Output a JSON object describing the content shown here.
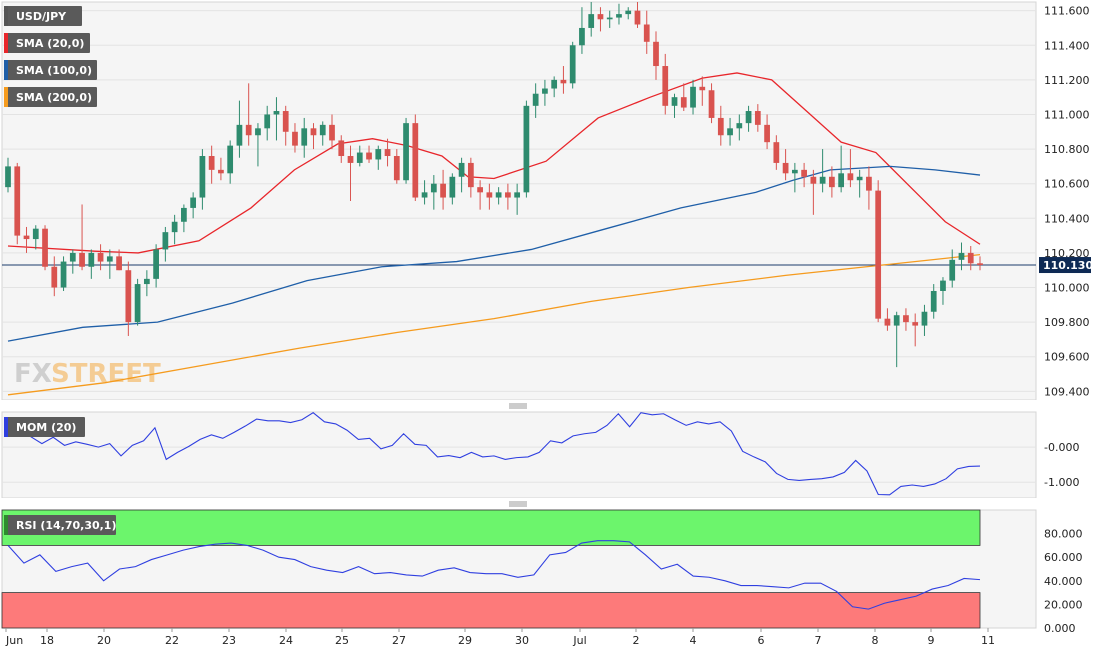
{
  "chart_data": [
    {
      "type": "candlestick",
      "symbol": "USD/JPY",
      "indicators": [
        {
          "name": "SMA (20,0)",
          "color": "#e8262b"
        },
        {
          "name": "SMA (100,0)",
          "color": "#1f5fa8"
        },
        {
          "name": "SMA (200,0)",
          "color": "#f59b1e"
        }
      ],
      "symbol_color": "#555555",
      "current_price": "110.130",
      "ylim": [
        109.35,
        111.65
      ],
      "y_ticks": [
        "111.600",
        "111.400",
        "111.200",
        "111.000",
        "110.800",
        "110.600",
        "110.400",
        "110.200",
        "110.000",
        "109.800",
        "109.600",
        "109.400"
      ],
      "x_ticks": [
        "Jun",
        "18",
        "20",
        "22",
        "23",
        "24",
        "25",
        "27",
        "29",
        "30",
        "Jul",
        "2",
        "4",
        "6",
        "7",
        "8",
        "9",
        "11"
      ],
      "up_color": "#2e8b6e",
      "down_color": "#d9534f",
      "candles": [
        [
          110.58,
          110.75,
          110.55,
          110.7
        ],
        [
          110.7,
          110.72,
          110.25,
          110.3
        ],
        [
          110.3,
          110.35,
          110.2,
          110.28
        ],
        [
          110.28,
          110.36,
          110.22,
          110.34
        ],
        [
          110.34,
          110.36,
          110.1,
          110.12
        ],
        [
          110.12,
          110.18,
          109.95,
          110.0
        ],
        [
          110.0,
          110.18,
          109.98,
          110.15
        ],
        [
          110.15,
          110.22,
          110.08,
          110.2
        ],
        [
          110.2,
          110.48,
          110.1,
          110.12
        ],
        [
          110.12,
          110.22,
          110.05,
          110.2
        ],
        [
          110.2,
          110.25,
          110.1,
          110.15
        ],
        [
          110.15,
          110.22,
          110.05,
          110.18
        ],
        [
          110.18,
          110.22,
          110.1,
          110.1
        ],
        [
          110.1,
          110.15,
          109.72,
          109.8
        ],
        [
          109.8,
          110.05,
          109.78,
          110.02
        ],
        [
          110.02,
          110.1,
          109.95,
          110.05
        ],
        [
          110.05,
          110.25,
          110.0,
          110.22
        ],
        [
          110.22,
          110.35,
          110.15,
          110.32
        ],
        [
          110.32,
          110.42,
          110.25,
          110.38
        ],
        [
          110.38,
          110.48,
          110.32,
          110.46
        ],
        [
          110.46,
          110.55,
          110.4,
          110.52
        ],
        [
          110.52,
          110.8,
          110.45,
          110.76
        ],
        [
          110.76,
          110.82,
          110.6,
          110.68
        ],
        [
          110.68,
          110.75,
          110.62,
          110.66
        ],
        [
          110.66,
          110.85,
          110.6,
          110.82
        ],
        [
          110.82,
          111.08,
          110.75,
          110.94
        ],
        [
          110.94,
          111.18,
          110.82,
          110.88
        ],
        [
          110.88,
          110.95,
          110.7,
          110.92
        ],
        [
          110.92,
          111.05,
          110.85,
          111.0
        ],
        [
          111.0,
          111.1,
          110.85,
          111.02
        ],
        [
          111.02,
          111.05,
          110.82,
          110.9
        ],
        [
          110.9,
          110.95,
          110.78,
          110.82
        ],
        [
          110.82,
          110.98,
          110.75,
          110.92
        ],
        [
          110.92,
          110.95,
          110.8,
          110.88
        ],
        [
          110.88,
          110.96,
          110.82,
          110.94
        ],
        [
          110.94,
          111.0,
          110.8,
          110.85
        ],
        [
          110.85,
          110.88,
          110.72,
          110.76
        ],
        [
          110.76,
          110.82,
          110.5,
          110.72
        ],
        [
          110.72,
          110.82,
          110.7,
          110.78
        ],
        [
          110.78,
          110.82,
          110.72,
          110.74
        ],
        [
          110.74,
          110.82,
          110.68,
          110.8
        ],
        [
          110.8,
          110.86,
          110.7,
          110.76
        ],
        [
          110.76,
          110.8,
          110.6,
          110.62
        ],
        [
          110.62,
          110.98,
          110.6,
          110.95
        ],
        [
          110.95,
          111.0,
          110.5,
          110.52
        ],
        [
          110.52,
          110.62,
          110.48,
          110.55
        ],
        [
          110.55,
          110.65,
          110.45,
          110.6
        ],
        [
          110.6,
          110.68,
          110.45,
          110.52
        ],
        [
          110.52,
          110.66,
          110.48,
          110.64
        ],
        [
          110.64,
          110.75,
          110.55,
          110.72
        ],
        [
          110.72,
          110.75,
          110.52,
          110.58
        ],
        [
          110.58,
          110.62,
          110.45,
          110.55
        ],
        [
          110.55,
          110.6,
          110.45,
          110.52
        ],
        [
          110.52,
          110.58,
          110.48,
          110.55
        ],
        [
          110.55,
          110.6,
          110.45,
          110.52
        ],
        [
          110.52,
          110.6,
          110.42,
          110.55
        ],
        [
          110.55,
          111.08,
          110.52,
          111.05
        ],
        [
          111.05,
          111.18,
          110.98,
          111.12
        ],
        [
          111.12,
          111.2,
          111.05,
          111.15
        ],
        [
          111.15,
          111.22,
          111.1,
          111.2
        ],
        [
          111.2,
          111.28,
          111.12,
          111.18
        ],
        [
          111.18,
          111.42,
          111.15,
          111.4
        ],
        [
          111.4,
          111.62,
          111.35,
          111.5
        ],
        [
          111.5,
          111.65,
          111.45,
          111.58
        ],
        [
          111.58,
          111.62,
          111.48,
          111.55
        ],
        [
          111.55,
          111.6,
          111.5,
          111.56
        ],
        [
          111.56,
          111.64,
          111.52,
          111.58
        ],
        [
          111.58,
          111.62,
          111.55,
          111.6
        ],
        [
          111.6,
          111.65,
          111.5,
          111.52
        ],
        [
          111.52,
          111.6,
          111.35,
          111.42
        ],
        [
          111.42,
          111.48,
          111.2,
          111.28
        ],
        [
          111.28,
          111.35,
          111.0,
          111.05
        ],
        [
          111.05,
          111.12,
          110.98,
          111.1
        ],
        [
          111.1,
          111.18,
          111.02,
          111.04
        ],
        [
          111.04,
          111.2,
          111.0,
          111.16
        ],
        [
          111.16,
          111.22,
          111.05,
          111.14
        ],
        [
          111.14,
          111.18,
          110.95,
          110.98
        ],
        [
          110.98,
          111.05,
          110.82,
          110.88
        ],
        [
          110.88,
          110.98,
          110.82,
          110.92
        ],
        [
          110.92,
          111.0,
          110.85,
          110.95
        ],
        [
          110.95,
          111.05,
          110.9,
          111.02
        ],
        [
          111.02,
          111.06,
          110.9,
          110.94
        ],
        [
          110.94,
          111.0,
          110.8,
          110.84
        ],
        [
          110.84,
          110.88,
          110.68,
          110.72
        ],
        [
          110.72,
          110.8,
          110.62,
          110.66
        ],
        [
          110.66,
          110.72,
          110.55,
          110.68
        ],
        [
          110.68,
          110.72,
          110.58,
          110.64
        ],
        [
          110.64,
          110.68,
          110.42,
          110.6
        ],
        [
          110.6,
          110.8,
          110.55,
          110.64
        ],
        [
          110.64,
          110.7,
          110.52,
          110.58
        ],
        [
          110.58,
          110.82,
          110.55,
          110.66
        ],
        [
          110.66,
          110.8,
          110.58,
          110.62
        ],
        [
          110.62,
          110.68,
          110.52,
          110.64
        ],
        [
          110.64,
          110.7,
          110.45,
          110.56
        ],
        [
          110.56,
          110.62,
          109.8,
          109.82
        ],
        [
          109.82,
          109.88,
          109.75,
          109.78
        ],
        [
          109.78,
          109.86,
          109.54,
          109.84
        ],
        [
          109.84,
          109.88,
          109.75,
          109.8
        ],
        [
          109.8,
          109.85,
          109.66,
          109.78
        ],
        [
          109.78,
          109.9,
          109.72,
          109.86
        ],
        [
          109.86,
          110.02,
          109.82,
          109.98
        ],
        [
          109.98,
          110.06,
          109.9,
          110.04
        ],
        [
          110.04,
          110.22,
          110.0,
          110.16
        ],
        [
          110.16,
          110.26,
          110.1,
          110.2
        ],
        [
          110.2,
          110.24,
          110.1,
          110.14
        ],
        [
          110.14,
          110.18,
          110.1,
          110.13
        ]
      ],
      "series": [
        {
          "name": "SMA (20,0)",
          "values": [
            [
              0,
              110.24
            ],
            [
              10,
              110.21
            ],
            [
              15,
              110.2
            ],
            [
              22,
              110.27
            ],
            [
              28,
              110.46
            ],
            [
              33,
              110.68
            ],
            [
              38,
              110.83
            ],
            [
              42,
              110.86
            ],
            [
              46,
              110.82
            ],
            [
              50,
              110.76
            ],
            [
              53,
              110.64
            ],
            [
              56,
              110.63
            ],
            [
              62,
              110.73
            ],
            [
              68,
              110.98
            ],
            [
              74,
              111.1
            ],
            [
              80,
              111.21
            ],
            [
              84,
              111.24
            ],
            [
              88,
              111.2
            ],
            [
              92,
              111.02
            ],
            [
              96,
              110.84
            ],
            [
              100,
              110.78
            ],
            [
              104,
              110.58
            ],
            [
              108,
              110.38
            ],
            [
              112,
              110.25
            ]
          ]
        },
        {
          "name": "SMA (100,0)",
          "values": [
            [
              0,
              109.69
            ],
            [
              10,
              109.77
            ],
            [
              20,
              109.8
            ],
            [
              30,
              109.91
            ],
            [
              40,
              110.04
            ],
            [
              50,
              110.12
            ],
            [
              60,
              110.15
            ],
            [
              70,
              110.22
            ],
            [
              80,
              110.34
            ],
            [
              90,
              110.46
            ],
            [
              100,
              110.55
            ],
            [
              105,
              110.62
            ],
            [
              110,
              110.68
            ],
            [
              118,
              110.7
            ],
            [
              124,
              110.68
            ],
            [
              130,
              110.65
            ]
          ]
        },
        {
          "name": "SMA (200,0)",
          "values": [
            [
              0,
              109.38
            ],
            [
              20,
              109.45
            ],
            [
              40,
              109.55
            ],
            [
              60,
              109.65
            ],
            [
              80,
              109.74
            ],
            [
              100,
              109.82
            ],
            [
              120,
              109.92
            ],
            [
              140,
              110.0
            ],
            [
              160,
              110.07
            ],
            [
              180,
              110.13
            ],
            [
              200,
              110.19
            ]
          ]
        }
      ]
    },
    {
      "type": "line",
      "indicator": "MOM (20)",
      "color": "#2f3fe0",
      "ylim": [
        -1.45,
        1.0
      ],
      "y_ticks": [
        "-0.000",
        "-1.000"
      ],
      "values": [
        0.82,
        0.6,
        0.3,
        0.1,
        0.28,
        0.05,
        0.15,
        0.08,
        0.0,
        0.1,
        -0.25,
        0.05,
        0.18,
        0.55,
        -0.35,
        -0.15,
        0.02,
        0.22,
        0.35,
        0.25,
        0.42,
        0.6,
        0.8,
        0.75,
        0.75,
        0.7,
        0.78,
        0.98,
        0.72,
        0.66,
        0.48,
        0.22,
        0.25,
        -0.05,
        0.05,
        0.38,
        0.08,
        0.05,
        -0.28,
        -0.24,
        -0.3,
        -0.15,
        -0.28,
        -0.25,
        -0.35,
        -0.3,
        -0.28,
        -0.15,
        0.18,
        0.12,
        0.32,
        0.38,
        0.42,
        0.62,
        0.95,
        0.58,
        0.98,
        0.92,
        0.95,
        0.78,
        0.62,
        0.72,
        0.66,
        0.72,
        0.46,
        -0.12,
        -0.28,
        -0.42,
        -0.75,
        -0.92,
        -0.95,
        -0.92,
        -0.9,
        -0.85,
        -0.72,
        -0.38,
        -0.68,
        -1.35,
        -1.36,
        -1.12,
        -1.08,
        -1.12,
        -1.05,
        -0.9,
        -0.62,
        -0.55,
        -0.54
      ]
    },
    {
      "type": "line",
      "indicator": "RSI (14,70,30,1)",
      "color": "#2f3fe0",
      "ylim": [
        0,
        100
      ],
      "y_ticks": [
        "80.000",
        "60.000",
        "40.000",
        "20.000",
        "0.000"
      ],
      "overbought": 70,
      "oversold": 30,
      "overbought_color": "#6cf56c",
      "oversold_color": "#fd7a7a",
      "values": [
        70,
        55,
        62,
        48,
        52,
        55,
        40,
        50,
        52,
        58,
        62,
        66,
        69,
        71,
        72,
        70,
        66,
        60,
        58,
        52,
        49,
        47,
        52,
        46,
        47,
        45,
        44,
        49,
        51,
        47,
        46,
        46,
        43,
        45,
        62,
        64,
        72,
        74,
        74,
        73,
        62,
        50,
        54,
        44,
        43,
        40,
        36,
        36,
        35,
        34,
        38,
        38,
        31,
        18,
        16,
        21,
        24,
        27,
        33,
        36,
        42,
        41
      ]
    }
  ],
  "x_ticks_shared": true,
  "watermark": "FXSTREET"
}
